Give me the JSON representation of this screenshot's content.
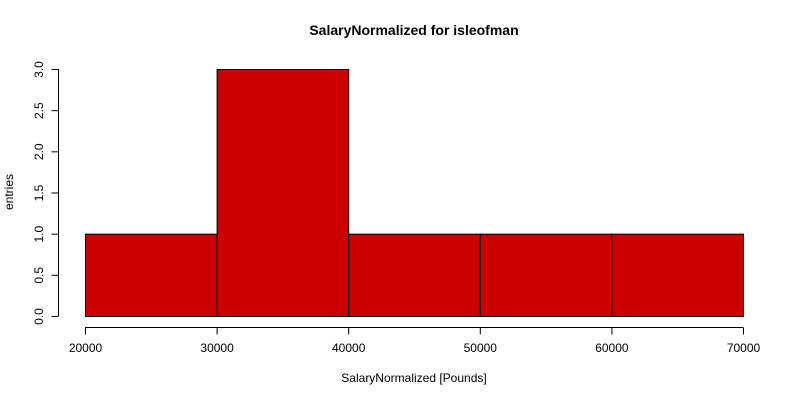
{
  "chart_data": {
    "type": "bar",
    "title": "SalaryNormalized for isleofman",
    "xlabel": "SalaryNormalized [Pounds]",
    "ylabel": "entries",
    "bins": [
      {
        "x0": 20000,
        "x1": 30000,
        "count": 1
      },
      {
        "x0": 30000,
        "x1": 40000,
        "count": 3
      },
      {
        "x0": 40000,
        "x1": 50000,
        "count": 1
      },
      {
        "x0": 50000,
        "x1": 60000,
        "count": 1
      },
      {
        "x0": 60000,
        "x1": 70000,
        "count": 1
      }
    ],
    "xlim": [
      20000,
      70000
    ],
    "ylim": [
      0,
      3
    ],
    "x_ticks": [
      "20000",
      "30000",
      "40000",
      "50000",
      "60000",
      "70000"
    ],
    "y_ticks": [
      "0.0",
      "0.5",
      "1.0",
      "1.5",
      "2.0",
      "2.5",
      "3.0"
    ],
    "bar_color": "#cc0000",
    "grid": false
  }
}
